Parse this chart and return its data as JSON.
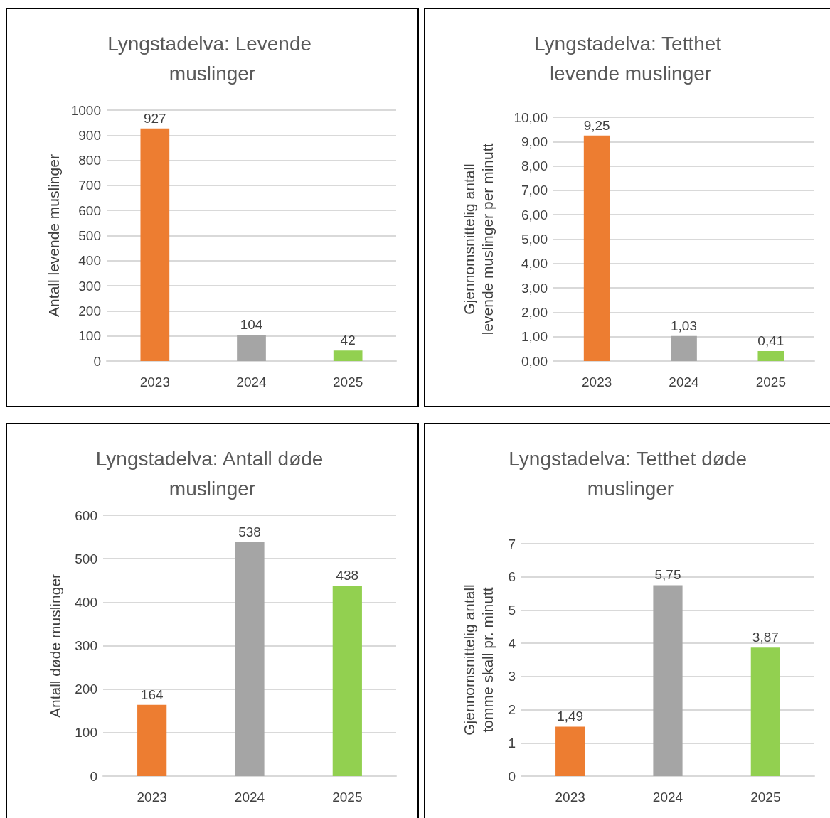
{
  "chart_data": [
    {
      "type": "bar",
      "title": "Lyngstadelva: Levende muslinger",
      "ylabel": "Antall levende muslinger",
      "categories": [
        "2023",
        "2024",
        "2025"
      ],
      "values": [
        927,
        104,
        42
      ],
      "colors": [
        "#ed7d31",
        "#a5a5a5",
        "#92d050"
      ],
      "ylim": [
        0,
        1000
      ],
      "yticks": [
        0,
        100,
        200,
        300,
        400,
        500,
        600,
        700,
        800,
        900,
        1000
      ],
      "grid": "y",
      "data_labels": true
    },
    {
      "type": "bar",
      "title": "Lyngstadelva: Tetthet levende muslinger",
      "ylabel": "Gjennomsnittelig antall levende muslinger per minutt",
      "categories": [
        "2023",
        "2024",
        "2025"
      ],
      "values": [
        9.25,
        1.03,
        0.41
      ],
      "value_labels": [
        "9,25",
        "1,03",
        "0,41"
      ],
      "colors": [
        "#ed7d31",
        "#a5a5a5",
        "#92d050"
      ],
      "ylim": [
        0,
        10
      ],
      "yticks": [
        {
          "value": 0,
          "label": "0,00"
        },
        {
          "value": 1,
          "label": "1,00"
        },
        {
          "value": 2,
          "label": "2,00"
        },
        {
          "value": 3,
          "label": "3,00"
        },
        {
          "value": 4,
          "label": "4,00"
        },
        {
          "value": 5,
          "label": "5,00"
        },
        {
          "value": 6,
          "label": "6,00"
        },
        {
          "value": 7,
          "label": "7,00"
        },
        {
          "value": 8,
          "label": "8,00"
        },
        {
          "value": 9,
          "label": "9,00"
        },
        {
          "value": 10,
          "label": "10,00"
        }
      ],
      "grid": "y"
    },
    {
      "type": "bar",
      "title": "Lyngstadelva: Antall døde muslinger",
      "ylabel": "Antall døde muslinger",
      "categories": [
        "2023",
        "2024",
        "2025"
      ],
      "values": [
        164,
        538,
        438
      ],
      "colors": [
        "#ed7d31",
        "#a5a5a5",
        "#92d050"
      ],
      "ylim": [
        0,
        600
      ],
      "yticks": [
        0,
        100,
        200,
        300,
        400,
        500,
        600
      ],
      "grid": "y",
      "data_labels": true
    },
    {
      "type": "bar",
      "title": "Lyngstadelva: Tetthet døde muslinger",
      "ylabel": "Gjennomsnittelig antall tomme skall pr. minutt",
      "categories": [
        "2023",
        "2024",
        "2025"
      ],
      "values": [
        1.49,
        5.75,
        3.87
      ],
      "value_labels": [
        "1,49",
        "5,75",
        "3,87"
      ],
      "colors": [
        "#ed7d31",
        "#a5a5a5",
        "#92d050"
      ],
      "ylim": [
        0,
        7
      ],
      "yticks": [
        0,
        1,
        2,
        3,
        4,
        5,
        6,
        7
      ],
      "grid": "y"
    }
  ]
}
